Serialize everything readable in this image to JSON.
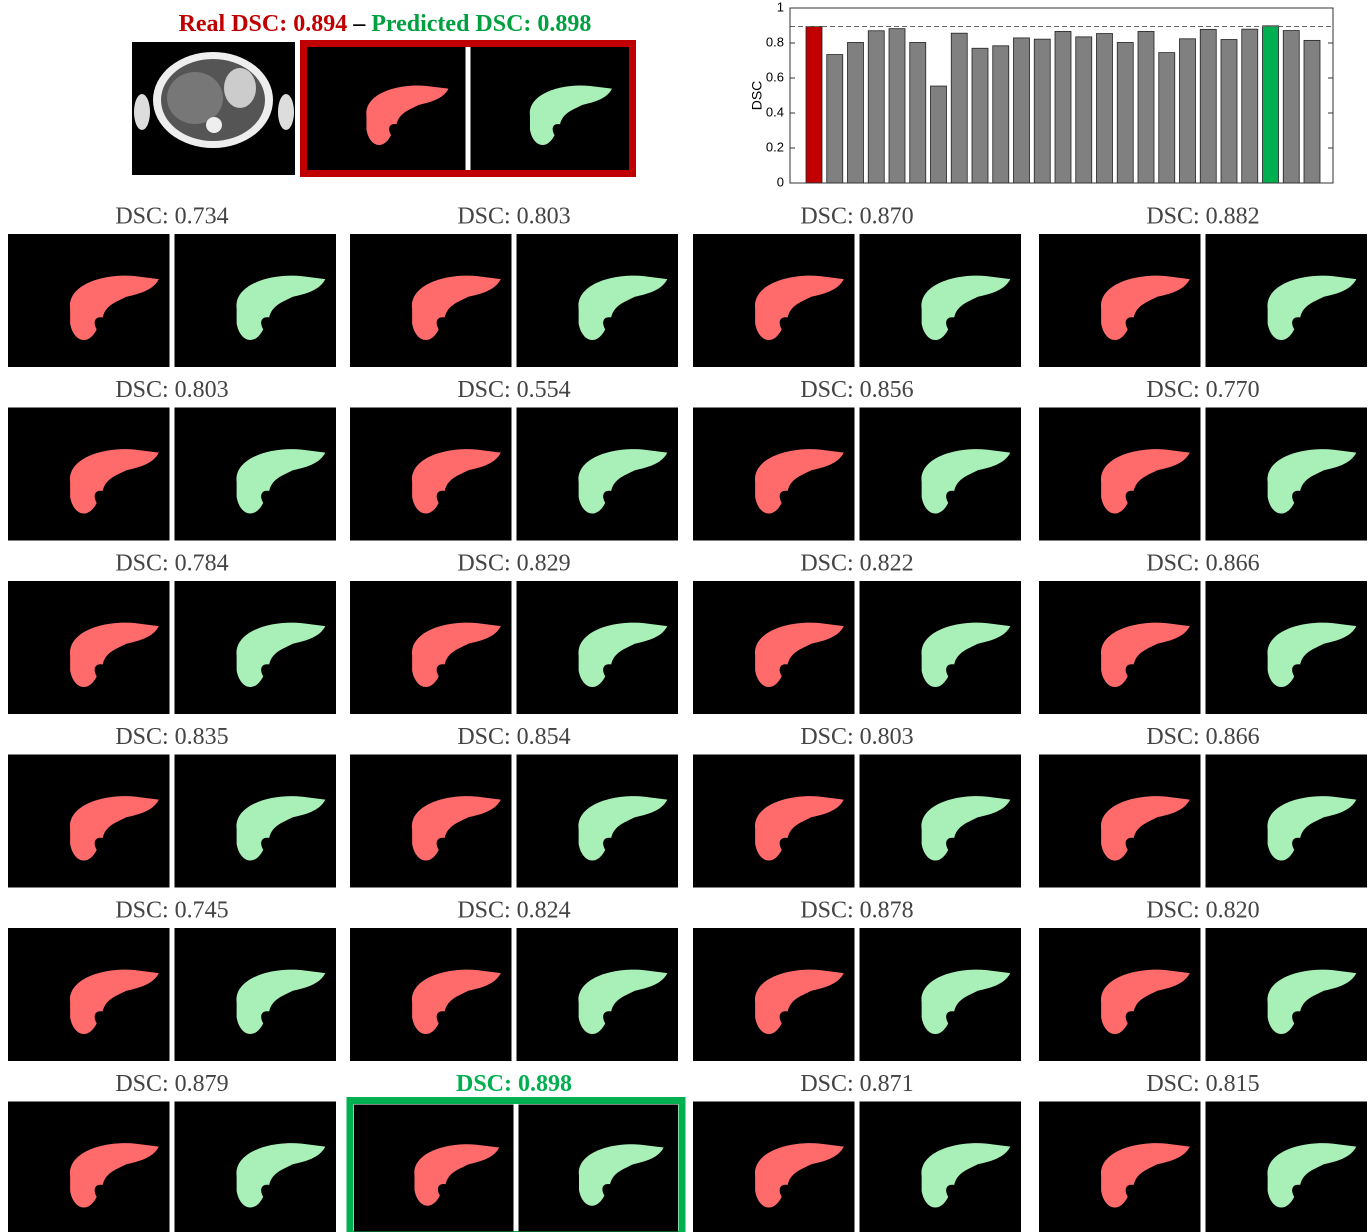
{
  "chart_data": {
    "type": "bar",
    "title_real": "Real DSC: 0.894",
    "title_separator": "–",
    "title_predicted": "Predicted DSC: 0.898",
    "ylabel": "DSC",
    "values": [
      0.894,
      0.734,
      0.803,
      0.87,
      0.882,
      0.803,
      0.554,
      0.856,
      0.77,
      0.784,
      0.829,
      0.822,
      0.866,
      0.835,
      0.854,
      0.803,
      0.866,
      0.745,
      0.824,
      0.878,
      0.82,
      0.879,
      0.898,
      0.871,
      0.815
    ],
    "value_labels": [
      "Real DSC: 0.894",
      "DSC: 0.734",
      "DSC: 0.803",
      "DSC: 0.870",
      "DSC: 0.882",
      "DSC: 0.803",
      "DSC: 0.554",
      "DSC: 0.856",
      "DSC: 0.770",
      "DSC: 0.784",
      "DSC: 0.829",
      "DSC: 0.822",
      "DSC: 0.866",
      "DSC: 0.835",
      "DSC: 0.854",
      "DSC: 0.803",
      "DSC: 0.866",
      "DSC: 0.745",
      "DSC: 0.824",
      "DSC: 0.878",
      "DSC: 0.820",
      "DSC: 0.879",
      "DSC: 0.898",
      "DSC: 0.871",
      "DSC: 0.815"
    ],
    "bar_color": "#808080",
    "colors": [
      "#c00000",
      "#808080",
      "#808080",
      "#808080",
      "#808080",
      "#808080",
      "#808080",
      "#808080",
      "#808080",
      "#808080",
      "#808080",
      "#808080",
      "#808080",
      "#808080",
      "#808080",
      "#808080",
      "#808080",
      "#808080",
      "#808080",
      "#808080",
      "#808080",
      "#808080",
      "#00b050",
      "#808080",
      "#808080"
    ],
    "ylim": [
      0,
      1
    ],
    "yticks": [
      0,
      0.2,
      0.4,
      0.6,
      0.8,
      1
    ]
  }
}
